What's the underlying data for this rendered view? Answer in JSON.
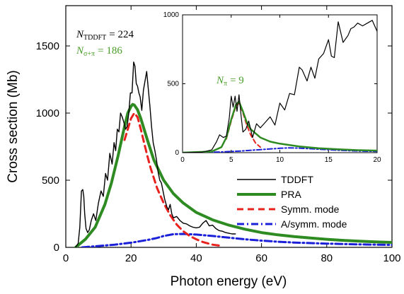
{
  "chart_data": [
    {
      "type": "line",
      "xlabel": "Photon energy (eV)",
      "ylabel": "Cross section (Mb)",
      "xlim": [
        0,
        100
      ],
      "ylim": [
        0,
        1800
      ],
      "xticks": [
        0,
        20,
        40,
        60,
        80,
        100
      ],
      "yticks": [
        0,
        500,
        1000,
        1500
      ],
      "grid": false,
      "legend_position": "bottom-right",
      "annotations": {
        "n_tddft": {
          "symbol": "N",
          "sub": "TDDFT",
          "value": "= 224",
          "color": "#000000"
        },
        "n_sigma_pi": {
          "symbol": "N",
          "sub": "σ+π",
          "value": "= 186",
          "color": "#4a9e2a"
        }
      },
      "series": [
        {
          "name": "TDDFT",
          "color": "#000000",
          "style": "solid",
          "width": 1.4,
          "x": [
            3,
            3.8,
            4.3,
            4.8,
            5.2,
            5.5,
            5.8,
            6.2,
            6.7,
            7.2,
            7.8,
            8.5,
            9.2,
            10,
            10.8,
            11.5,
            12.2,
            12.8,
            13.5,
            14.2,
            14.8,
            15.3,
            15.8,
            16.3,
            16.8,
            17.3,
            17.8,
            18.3,
            18.8,
            19.3,
            19.8,
            20.3,
            20.8,
            21.2,
            21.6,
            22,
            22.4,
            22.8,
            23.3,
            23.8,
            24.3,
            24.8,
            25.3,
            25.8,
            26.3,
            26.8,
            27.3,
            27.8,
            28.3,
            28.8,
            29.3,
            29.8,
            30.3,
            31,
            31.5,
            32,
            32.5,
            33,
            34,
            35,
            36,
            37,
            38,
            39,
            40,
            41,
            42,
            43,
            44,
            45,
            46,
            47,
            48,
            49,
            50,
            51,
            52
          ],
          "y": [
            0,
            30,
            150,
            420,
            430,
            380,
            250,
            140,
            110,
            130,
            200,
            250,
            200,
            330,
            420,
            380,
            550,
            500,
            700,
            620,
            780,
            720,
            880,
            860,
            1000,
            970,
            930,
            880,
            900,
            1000,
            1150,
            1150,
            1380,
            1350,
            1220,
            1200,
            1150,
            1120,
            1020,
            1170,
            1240,
            1310,
            1180,
            1050,
            900,
            780,
            720,
            650,
            560,
            500,
            480,
            420,
            360,
            300,
            280,
            320,
            250,
            220,
            230,
            200,
            180,
            175,
            160,
            150,
            145,
            150,
            180,
            200,
            160,
            165,
            140,
            125,
            120,
            110,
            105,
            100,
            100
          ]
        },
        {
          "name": "PRA",
          "color": "#2e8b22",
          "style": "solid",
          "width": 4,
          "x": [
            3,
            6,
            9,
            12,
            14,
            16,
            18,
            19,
            20,
            20.5,
            21,
            22,
            23,
            25,
            27,
            30,
            33,
            36,
            40,
            45,
            50,
            55,
            60,
            65,
            70,
            75,
            80,
            85,
            90,
            95,
            100
          ],
          "y": [
            0,
            60,
            150,
            320,
            480,
            680,
            900,
            1000,
            1050,
            1065,
            1060,
            1025,
            960,
            800,
            650,
            500,
            400,
            330,
            260,
            205,
            165,
            135,
            110,
            93,
            80,
            70,
            60,
            52,
            46,
            41,
            37
          ]
        },
        {
          "name": "Symm. mode",
          "color": "#e8211d",
          "style": "dash",
          "width": 3,
          "x": [
            18,
            19,
            20,
            21,
            22,
            23,
            24,
            25,
            26,
            28,
            30,
            32,
            34,
            36,
            38,
            40,
            42,
            45,
            48
          ],
          "y": [
            800,
            880,
            960,
            1000,
            970,
            880,
            780,
            680,
            590,
            440,
            330,
            240,
            170,
            120,
            85,
            60,
            40,
            20,
            10
          ]
        },
        {
          "name": "A/symm. mode",
          "color": "#1a20d8",
          "style": "dashdot",
          "width": 3,
          "x": [
            5,
            10,
            15,
            20,
            25,
            28,
            30,
            33,
            36,
            40,
            45,
            50,
            55,
            60,
            65,
            70,
            80,
            90,
            100
          ],
          "y": [
            0,
            10,
            20,
            35,
            55,
            70,
            85,
            98,
            100,
            95,
            85,
            72,
            60,
            50,
            42,
            36,
            28,
            22,
            18
          ]
        }
      ]
    },
    {
      "type": "line",
      "xlim": [
        0,
        20
      ],
      "ylim": [
        0,
        1000
      ],
      "xticks": [
        0,
        5,
        10,
        15,
        20
      ],
      "yticks": [
        0,
        500,
        1000
      ],
      "grid": false,
      "annotations": {
        "n_pi": {
          "symbol": "N",
          "sub": "π",
          "value": "= 9",
          "color": "#4a9e2a"
        }
      },
      "series": [
        {
          "name": "TDDFT",
          "color": "#000000",
          "style": "solid",
          "width": 1.2,
          "x": [
            0,
            2,
            3,
            3.5,
            3.8,
            4.2,
            4.5,
            4.8,
            5.0,
            5.2,
            5.4,
            5.6,
            5.8,
            6.0,
            6.2,
            6.5,
            6.8,
            7.2,
            7.6,
            8.0,
            8.5,
            9.0,
            9.5,
            10.0,
            10.5,
            11.0,
            11.5,
            12.0,
            12.3,
            12.8,
            13.2,
            13.6,
            14.0,
            14.5,
            15.0,
            15.3,
            15.6,
            16.0,
            16.5,
            17.0,
            17.3,
            17.6,
            18.0,
            18.5,
            19.0,
            19.5,
            20.0
          ],
          "y": [
            0,
            3,
            20,
            80,
            130,
            110,
            120,
            250,
            410,
            330,
            410,
            300,
            420,
            280,
            150,
            170,
            230,
            110,
            210,
            180,
            220,
            260,
            200,
            360,
            310,
            430,
            420,
            620,
            600,
            520,
            620,
            540,
            680,
            720,
            820,
            700,
            690,
            950,
            800,
            850,
            900,
            910,
            940,
            920,
            940,
            960,
            880
          ]
        },
        {
          "name": "PRA",
          "color": "#2e8b22",
          "style": "solid",
          "width": 2.5,
          "x": [
            0,
            3,
            4,
            4.5,
            5,
            5.5,
            5.8,
            6.2,
            6.6,
            7,
            8,
            9,
            10,
            12,
            14,
            16,
            18,
            20
          ],
          "y": [
            0,
            8,
            40,
            110,
            240,
            350,
            370,
            300,
            220,
            170,
            110,
            80,
            65,
            45,
            32,
            24,
            18,
            15
          ]
        },
        {
          "name": "Symm. mode",
          "color": "#e8211d",
          "style": "dash",
          "width": 2,
          "x": [
            4.5,
            5,
            5.5,
            5.8,
            6.2,
            6.6,
            7,
            7.5,
            8
          ],
          "y": [
            100,
            230,
            340,
            360,
            290,
            200,
            130,
            70,
            40
          ]
        },
        {
          "name": "A/symm. mode",
          "color": "#1a20d8",
          "style": "dashdot",
          "width": 2,
          "x": [
            0,
            2,
            4,
            6,
            8,
            10,
            11,
            12,
            14,
            16,
            18,
            20
          ],
          "y": [
            0,
            2,
            5,
            12,
            22,
            32,
            35,
            33,
            25,
            18,
            12,
            9
          ]
        }
      ]
    }
  ]
}
